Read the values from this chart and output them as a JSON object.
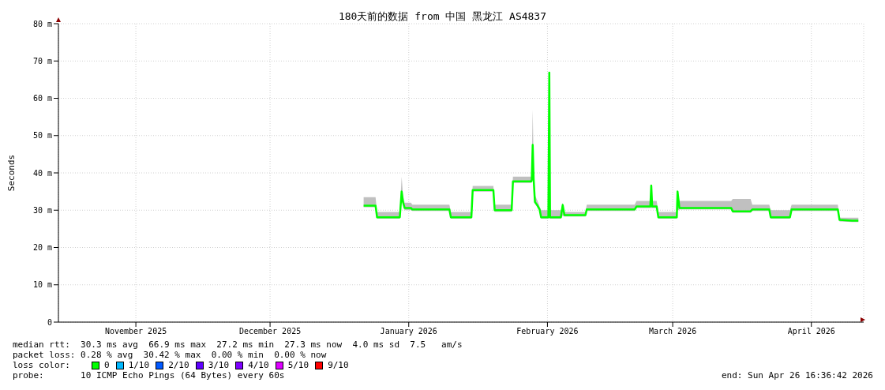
{
  "chart_data": {
    "type": "line",
    "title": "180天前的数据 from 中国 黑龙江 AS4837",
    "ylabel": "Seconds",
    "x": [
      "2026-01-04T22:00",
      "2026-01-07T14:00",
      "2026-01-07T22:00",
      "2026-01-13T00:00",
      "2026-01-13T10:00",
      "2026-01-13T17:00",
      "2026-01-14T02:00",
      "2026-01-15T12:00",
      "2026-01-15T19:00",
      "2026-01-24T02:00",
      "2026-01-24T10:00",
      "2026-01-29T00:00",
      "2026-01-29T07:00",
      "2026-02-02T22:00",
      "2026-02-03T05:00",
      "2026-02-07T00:00",
      "2026-02-07T07:00",
      "2026-02-11T10:00",
      "2026-02-11T12:00",
      "2026-02-11T17:00",
      "2026-02-11T22:00",
      "2026-02-12T05:00",
      "2026-02-12T19:00",
      "2026-02-13T06:00",
      "2026-02-13T14:00",
      "2026-02-15T05:00",
      "2026-02-15T10:00",
      "2026-02-15T14:00",
      "2026-02-18T00:00",
      "2026-02-18T10:00",
      "2026-02-18T19:00",
      "2026-02-23T12:00",
      "2026-02-23T19:00",
      "2026-03-06T12:00",
      "2026-03-06T22:00",
      "2026-03-10T00:00",
      "2026-03-10T05:00",
      "2026-03-10T10:00",
      "2026-03-11T10:00",
      "2026-03-11T19:00",
      "2026-03-15T22:00",
      "2026-03-16T02:00",
      "2026-03-16T12:00",
      "2026-03-28T02:00",
      "2026-03-28T10:00",
      "2026-04-01T10:00",
      "2026-04-01T19:00",
      "2026-04-05T14:00",
      "2026-04-05T22:00",
      "2026-04-10T05:00",
      "2026-04-10T14:00",
      "2026-04-20T22:00",
      "2026-04-21T07:00",
      "2026-04-24T02:00",
      "2026-04-25T12:00"
    ],
    "series": [
      {
        "name": "0",
        "color": "#00ff00",
        "values": [
          31.2,
          31.2,
          28.1,
          28.1,
          35.0,
          32.2,
          30.6,
          30.6,
          30.2,
          30.2,
          28.1,
          28.1,
          35.4,
          35.4,
          30.0,
          30.0,
          37.7,
          37.7,
          38.3,
          47.5,
          38.3,
          32.2,
          31.2,
          30.2,
          28.1,
          28.1,
          66.9,
          28.1,
          28.1,
          31.4,
          28.7,
          28.7,
          30.2,
          30.2,
          31.0,
          31.0,
          36.6,
          31.0,
          31.0,
          28.1,
          28.1,
          35.0,
          30.6,
          30.6,
          29.7,
          29.7,
          30.2,
          30.2,
          28.1,
          28.1,
          30.2,
          30.2,
          27.4,
          27.2,
          27.2
        ],
        "lower": [
          30.8,
          30.8,
          27.7,
          27.7,
          34.0,
          31.5,
          30.0,
          30.0,
          29.8,
          29.8,
          27.7,
          27.7,
          35.0,
          35.0,
          29.6,
          29.6,
          37.3,
          37.3,
          37.9,
          38.0,
          37.9,
          31.8,
          30.8,
          29.8,
          27.7,
          27.7,
          28.0,
          27.7,
          27.7,
          28.5,
          28.3,
          28.3,
          29.8,
          29.8,
          30.6,
          30.6,
          30.6,
          30.6,
          30.6,
          27.7,
          27.7,
          29.8,
          30.2,
          30.2,
          29.3,
          29.3,
          29.8,
          29.8,
          27.7,
          27.7,
          29.8,
          29.8,
          27.0,
          26.8,
          26.8
        ],
        "upper": [
          33.5,
          33.5,
          29.5,
          29.5,
          39.0,
          34.0,
          32.0,
          32.0,
          31.5,
          31.5,
          29.5,
          29.5,
          36.5,
          36.5,
          31.5,
          31.5,
          39.0,
          39.0,
          42.0,
          57.0,
          42.0,
          34.0,
          32.5,
          31.0,
          30.0,
          30.0,
          67.0,
          30.0,
          30.0,
          32.0,
          29.5,
          29.5,
          31.5,
          31.5,
          32.5,
          32.5,
          37.0,
          32.5,
          32.5,
          29.5,
          29.5,
          35.5,
          32.5,
          32.5,
          33.0,
          33.0,
          31.5,
          31.5,
          30.0,
          30.0,
          31.5,
          31.5,
          28.0,
          28.0,
          28.0
        ]
      },
      {
        "name": "1/10",
        "color": "#00b8ff",
        "values": [
          null,
          null,
          null,
          null,
          null,
          null,
          null,
          null,
          null,
          null,
          null,
          null,
          null,
          null,
          null,
          null,
          null,
          null,
          null,
          null,
          null,
          null,
          null,
          null,
          null,
          null,
          null,
          null,
          null,
          null,
          null,
          null,
          null,
          null,
          null,
          null,
          null,
          null,
          null,
          null,
          null,
          null,
          null,
          null,
          null,
          null,
          null,
          null,
          null,
          null,
          null,
          null,
          null,
          null,
          null
        ]
      },
      {
        "name": "2/10",
        "color": "#0059ff",
        "values": [
          null,
          null,
          null,
          null,
          null,
          null,
          null,
          null,
          null,
          null,
          null,
          null,
          null,
          null,
          null,
          null,
          null,
          null,
          null,
          null,
          null,
          null,
          null,
          null,
          null,
          null,
          null,
          null,
          null,
          null,
          null,
          null,
          null,
          null,
          null,
          null,
          null,
          null,
          null,
          null,
          null,
          null,
          null,
          null,
          null,
          null,
          null,
          null,
          null,
          null,
          null,
          null,
          null,
          null,
          null
        ]
      },
      {
        "name": "3/10",
        "color": "#5e00ff",
        "values": [
          null,
          null,
          null,
          null,
          null,
          null,
          null,
          null,
          null,
          null,
          null,
          null,
          null,
          null,
          null,
          null,
          null,
          null,
          null,
          null,
          null,
          null,
          null,
          null,
          null,
          null,
          null,
          null,
          null,
          null,
          null,
          null,
          null,
          null,
          null,
          null,
          null,
          null,
          null,
          null,
          null,
          null,
          null,
          null,
          null,
          null,
          null,
          null,
          null,
          null,
          null,
          null,
          null,
          null,
          null
        ]
      },
      {
        "name": "4/10",
        "color": "#7e00ff",
        "values": [
          null,
          null,
          null,
          null,
          null,
          null,
          null,
          null,
          null,
          null,
          null,
          null,
          null,
          null,
          null,
          null,
          null,
          null,
          null,
          null,
          null,
          null,
          null,
          null,
          null,
          null,
          null,
          null,
          null,
          null,
          null,
          null,
          null,
          null,
          null,
          null,
          null,
          null,
          null,
          null,
          null,
          null,
          null,
          null,
          null,
          null,
          null,
          null,
          null,
          null,
          null,
          null,
          null,
          null,
          null
        ]
      },
      {
        "name": "5/10",
        "color": "#dd00ff",
        "values": [
          null,
          null,
          null,
          null,
          null,
          null,
          null,
          null,
          null,
          null,
          null,
          null,
          null,
          null,
          null,
          null,
          null,
          null,
          null,
          null,
          null,
          null,
          null,
          null,
          null,
          null,
          null,
          null,
          null,
          null,
          null,
          null,
          null,
          null,
          null,
          null,
          null,
          null,
          null,
          null,
          null,
          null,
          null,
          null,
          null,
          null,
          null,
          null,
          null,
          null,
          null,
          null,
          null,
          null,
          null
        ]
      },
      {
        "name": "9/10",
        "color": "#ff0000",
        "values": [
          null,
          null,
          null,
          null,
          null,
          null,
          null,
          null,
          null,
          null,
          null,
          null,
          null,
          null,
          null,
          null,
          null,
          null,
          null,
          null,
          null,
          null,
          null,
          null,
          null,
          null,
          null,
          null,
          null,
          null,
          null,
          null,
          null,
          null,
          null,
          null,
          null,
          null,
          null,
          null,
          null,
          null,
          null,
          null,
          null,
          null,
          null,
          null,
          null,
          null,
          null,
          null,
          null,
          null,
          null
        ]
      }
    ],
    "xlim": [
      "2025-10-28T16:36",
      "2026-04-26T16:36"
    ],
    "xticks": [
      {
        "value": "2025-11-15",
        "label": "November 2025"
      },
      {
        "value": "2025-12-15",
        "label": "December 2025"
      },
      {
        "value": "2026-01-15",
        "label": "January 2026"
      },
      {
        "value": "2026-02-15",
        "label": "February 2026"
      },
      {
        "value": "2026-03-15",
        "label": "March 2026"
      },
      {
        "value": "2026-04-15",
        "label": "April 2026"
      }
    ],
    "ylim": [
      0,
      80
    ],
    "yticks": [
      0,
      {
        "value": 10,
        "label": "10 m"
      },
      {
        "value": 20,
        "label": "20 m"
      },
      {
        "value": 30,
        "label": "30 m"
      },
      {
        "value": 40,
        "label": "40 m"
      },
      {
        "value": 50,
        "label": "50 m"
      },
      {
        "value": 60,
        "label": "60 m"
      },
      {
        "value": 70,
        "label": "70 m"
      },
      {
        "value": 80,
        "label": "80 m"
      }
    ],
    "grid": true,
    "legend": "bottom",
    "legend_title": "loss color:",
    "marker": "none",
    "line_style": "solid",
    "annotations": [
      "median rtt:  30.3 ms avg  66.9 ms max  27.2 ms min  27.3 ms now  4.0 ms sd  7.5   am/s",
      "packet loss: 0.28 % avg  30.42 % max  0.00 % min  0.00 % now",
      "probe:       10 ICMP Echo Pings (64 Bytes) every 60s",
      "end: Sun Apr 26 16:36:42 2026"
    ]
  }
}
